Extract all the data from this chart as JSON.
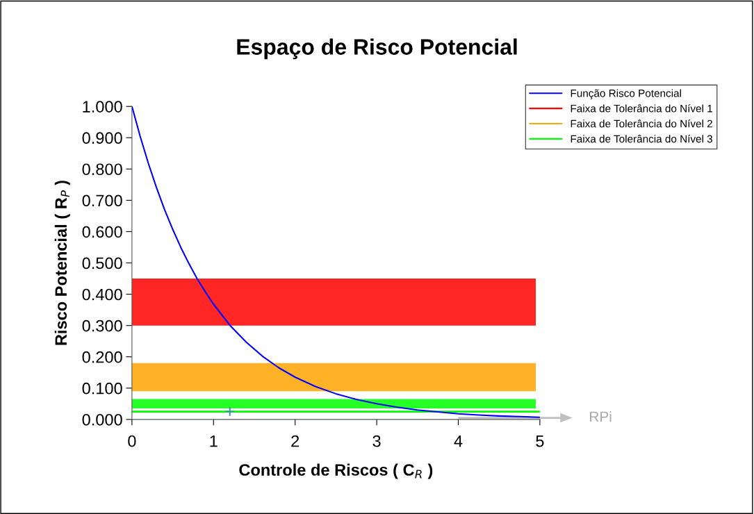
{
  "chart_data": {
    "type": "line",
    "title": "Espaço de Risco Potencial",
    "xlabel": "Controle de Riscos ( C$_{R}$ )",
    "ylabel": "Risco Potencial ( R$_{P}$ )",
    "x": [
      0,
      0.1,
      0.2,
      0.3,
      0.4,
      0.5,
      0.6,
      0.7,
      0.8,
      0.9,
      1.0,
      1.2,
      1.4,
      1.6,
      1.8,
      2.0,
      2.25,
      2.5,
      2.75,
      3.0,
      3.25,
      3.5,
      3.75,
      4.0,
      4.25,
      4.5,
      4.75,
      5.0
    ],
    "series": [
      {
        "name": "Função Risco Potencial",
        "color": "#0000ff",
        "values": [
          1.0,
          0.905,
          0.819,
          0.741,
          0.67,
          0.607,
          0.549,
          0.497,
          0.449,
          0.407,
          0.368,
          0.301,
          0.247,
          0.202,
          0.165,
          0.135,
          0.105,
          0.082,
          0.064,
          0.05,
          0.039,
          0.03,
          0.024,
          0.018,
          0.014,
          0.011,
          0.009,
          0.007
        ]
      },
      {
        "type": "scatter",
        "x": [
          1.2
        ],
        "values": [
          0.025
        ],
        "color": "#339999",
        "marker": "cross"
      }
    ],
    "bands": [
      {
        "axis": "y",
        "from": 0.3,
        "to": 0.45,
        "label": "Faixa de Tolerância do Nível 1",
        "color": "#ff0000"
      },
      {
        "axis": "y",
        "from": 0.09,
        "to": 0.18,
        "label": "Faixa de Tolerância do Nível 2",
        "color": "#ffa500"
      },
      {
        "axis": "y",
        "from": 0.035,
        "to": 0.065,
        "label": "Faixa de Tolerância do Nível 3",
        "color": "#00ff00"
      }
    ],
    "ref_lines": [
      {
        "axis": "y",
        "value": 0.025,
        "color": "#00ff00",
        "line_style": "solid"
      }
    ],
    "annotations": [
      "RPi"
    ],
    "xlim": [
      0,
      5
    ],
    "xticks": [
      0,
      1,
      2,
      3,
      4,
      5
    ],
    "ylim": [
      0,
      1.0
    ],
    "yticks": [
      {
        "value": 0,
        "label": "0.000"
      },
      {
        "value": 0.1,
        "label": "0.100"
      },
      {
        "value": 0.2,
        "label": "0.200"
      },
      {
        "value": 0.3,
        "label": "0.300"
      },
      {
        "value": 0.4,
        "label": "0.400"
      },
      {
        "value": 0.5,
        "label": "0.500"
      },
      {
        "value": 0.6,
        "label": "0.600"
      },
      {
        "value": 0.7,
        "label": "0.700"
      },
      {
        "value": 0.8,
        "label": "0.800"
      },
      {
        "value": 0.9,
        "label": "0.900"
      },
      {
        "value": 1.0,
        "label": "1.000"
      }
    ],
    "grid": false,
    "legend": "top right",
    "marker": "none",
    "line_style": "solid"
  }
}
